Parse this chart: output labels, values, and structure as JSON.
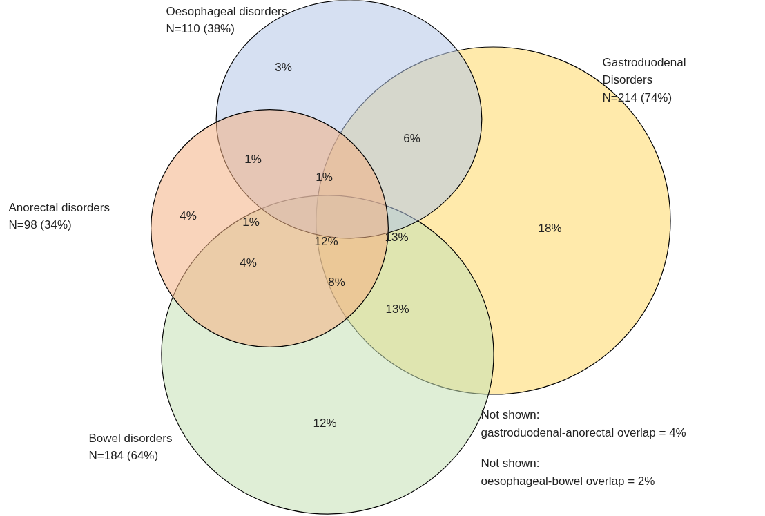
{
  "chart_data": {
    "type": "other",
    "categories": [
      "Gastroduodenal\nDisorders",
      "Bowel disorders",
      "Oesophageal disorders",
      "Anorectal disorders"
    ],
    "values": [
      214,
      184,
      110,
      98
    ],
    "value_labels": [
      "N=214 (74%)",
      "N=184 (64%)",
      "N=110 (38%)",
      "N=98 (34%)"
    ],
    "colors": [
      "#ffd966",
      "#c5e0b4",
      "#b4c7e7",
      "#f4b183"
    ],
    "annotations": [
      "3%",
      "6%",
      "1%",
      "1%",
      "4%",
      "1%",
      "12%",
      "13%",
      "18%",
      "4%",
      "8%",
      "13%",
      "12%",
      "Not shown:\ngastroduodenal-anorectal  overlap = 4%",
      "Not shown:\noesophageal-bowel  overlap = 2%"
    ]
  }
}
